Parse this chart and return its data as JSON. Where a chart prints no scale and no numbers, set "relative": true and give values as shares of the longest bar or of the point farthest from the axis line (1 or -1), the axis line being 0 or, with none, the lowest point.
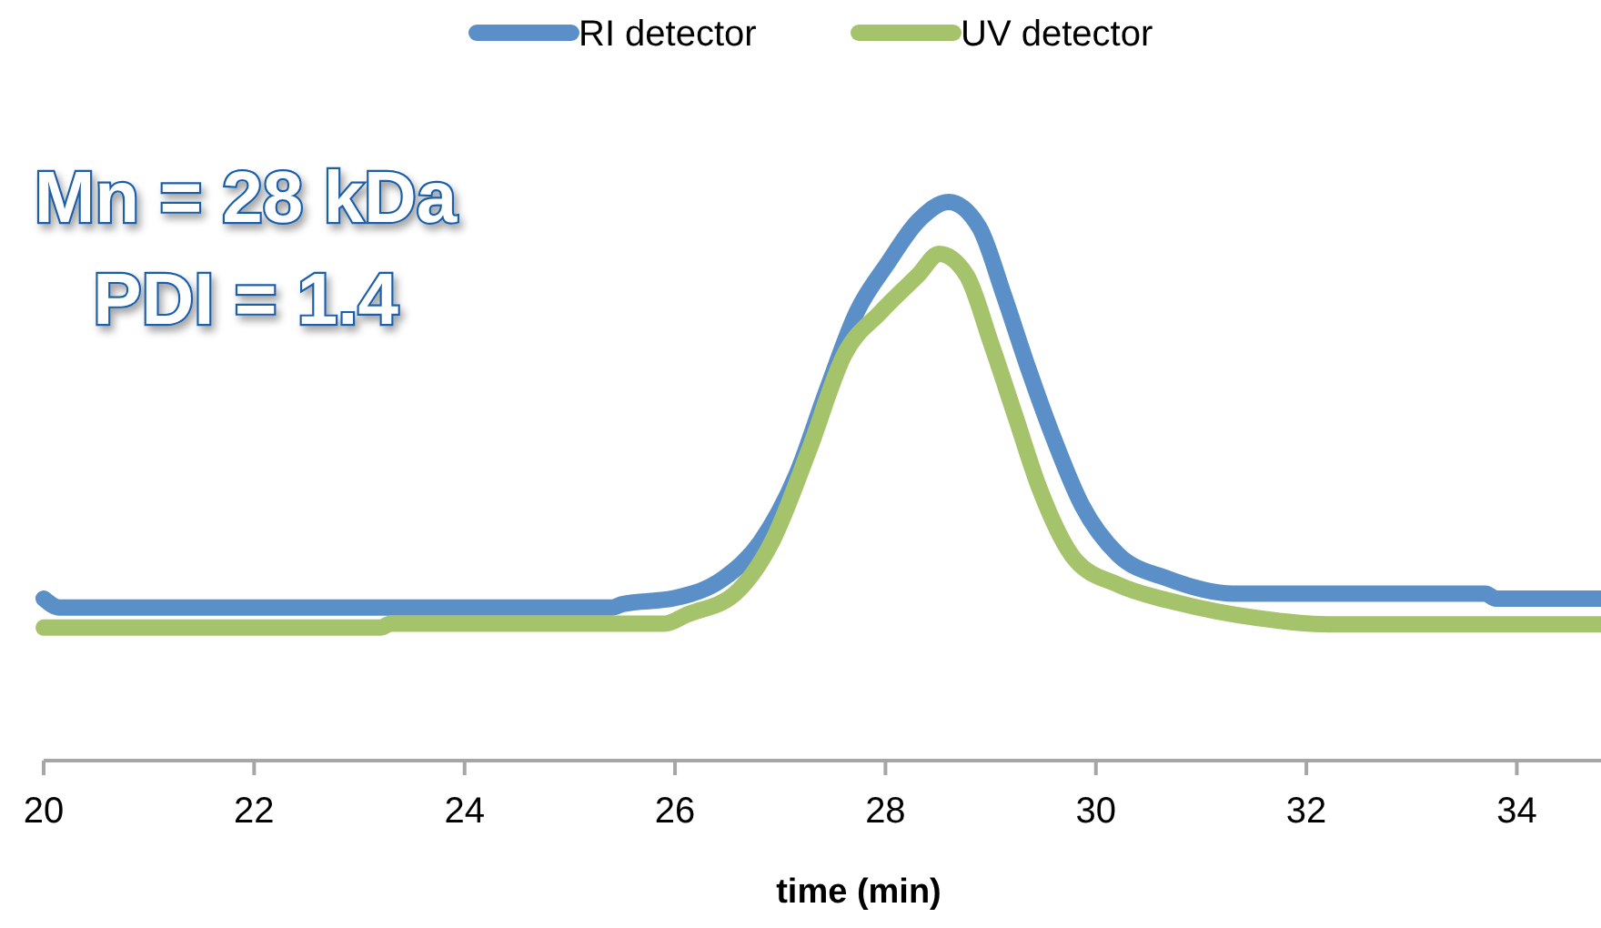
{
  "chart_data": {
    "type": "line",
    "relative": true,
    "xlabel": "time (min)",
    "xlim": [
      20,
      34.8
    ],
    "xticks": [
      20,
      22,
      24,
      26,
      28,
      30,
      32,
      34
    ],
    "legend": "top",
    "annotations": [
      "Mn = 28 kDa",
      "PDI = 1.4"
    ],
    "series": [
      {
        "name": "RI detector",
        "color": "#5b8fc7",
        "x": [
          20,
          20.15,
          25.4,
          25.5,
          26.0,
          26.46,
          26.81,
          27.15,
          27.44,
          27.73,
          28.02,
          28.31,
          28.6,
          28.89,
          29.12,
          29.35,
          29.58,
          29.87,
          30.21,
          30.68,
          31.31,
          33.7,
          33.8,
          34.8
        ],
        "values": [
          0.29,
          0.274,
          0.274,
          0.28,
          0.291,
          0.326,
          0.391,
          0.51,
          0.662,
          0.804,
          0.89,
          0.966,
          1.0,
          0.955,
          0.836,
          0.706,
          0.586,
          0.456,
          0.369,
          0.326,
          0.299,
          0.299,
          0.29,
          0.29
        ]
      },
      {
        "name": "UV detector",
        "color": "#a5c36a",
        "x": [
          20,
          23.2,
          23.3,
          25.9,
          26.11,
          26.57,
          26.92,
          27.27,
          27.61,
          27.96,
          28.31,
          28.51,
          28.77,
          29.0,
          29.23,
          29.46,
          29.81,
          30.21,
          30.79,
          31.54,
          32.2,
          34.8
        ],
        "values": [
          0.238,
          0.238,
          0.245,
          0.245,
          0.261,
          0.299,
          0.391,
          0.554,
          0.727,
          0.804,
          0.869,
          0.907,
          0.869,
          0.749,
          0.619,
          0.489,
          0.358,
          0.315,
          0.282,
          0.255,
          0.244,
          0.244
        ]
      }
    ]
  }
}
